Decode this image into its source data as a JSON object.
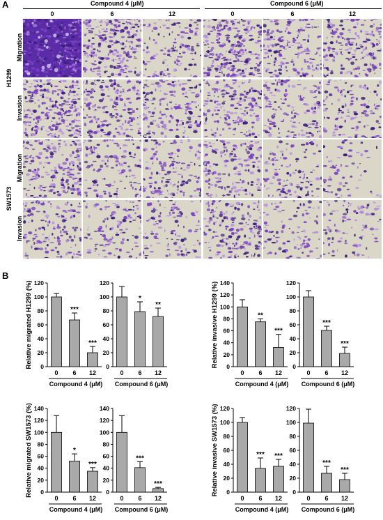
{
  "panels": {
    "a": "A",
    "b": "B"
  },
  "groups": [
    "Compound 4 (μM)",
    "Compound 6 (μM)"
  ],
  "concentrations": [
    "0",
    "6",
    "12"
  ],
  "cell_lines": [
    "H1299",
    "SW1573"
  ],
  "assays": [
    "Migration",
    "Invasion"
  ],
  "stain_colors": {
    "dark": "#3b1f7a",
    "mid": "#7a3fc0",
    "light": "#b58be0",
    "bg_dense": "#5a2ca8",
    "bg_sparse": "#dad6c8"
  },
  "chart_data": [
    {
      "type": "bar",
      "ylabel": "Relative migrated H1299 (%)",
      "xlabel": "Compound 4 (μM)",
      "categories": [
        "0",
        "6",
        "12"
      ],
      "values": [
        100,
        67,
        20
      ],
      "errors": [
        5,
        10,
        9
      ],
      "significance": [
        "",
        "***",
        "***"
      ],
      "ylim": [
        0,
        120
      ],
      "yticks": [
        0,
        20,
        40,
        60,
        80,
        100,
        120
      ],
      "show_ylabel": true
    },
    {
      "type": "bar",
      "ylabel": "",
      "xlabel": "Compound 6 (μM)",
      "categories": [
        "0",
        "6",
        "12"
      ],
      "values": [
        100,
        79,
        72
      ],
      "errors": [
        15,
        14,
        12
      ],
      "significance": [
        "",
        "*",
        "**"
      ],
      "ylim": [
        0,
        120
      ],
      "yticks": [
        0,
        20,
        40,
        60,
        80,
        100,
        120
      ],
      "show_ylabel": false
    },
    {
      "type": "bar",
      "ylabel": "Relative invasive H1299 (%)",
      "xlabel": "Compound 4 (μM)",
      "categories": [
        "0",
        "6",
        "12"
      ],
      "values": [
        100,
        75,
        32
      ],
      "errors": [
        12,
        5,
        22
      ],
      "significance": [
        "",
        "**",
        "***"
      ],
      "ylim": [
        0,
        140
      ],
      "yticks": [
        0,
        20,
        40,
        60,
        80,
        100,
        120,
        140
      ],
      "show_ylabel": true
    },
    {
      "type": "bar",
      "ylabel": "",
      "xlabel": "Compound 6 (μM)",
      "categories": [
        "0",
        "6",
        "12"
      ],
      "values": [
        100,
        52,
        19
      ],
      "errors": [
        9,
        6,
        9
      ],
      "significance": [
        "",
        "***",
        "***"
      ],
      "ylim": [
        0,
        120
      ],
      "yticks": [
        0,
        20,
        40,
        60,
        80,
        100,
        120
      ],
      "show_ylabel": false
    },
    {
      "type": "bar",
      "ylabel": "Relative migrated SW1573 (%)",
      "xlabel": "Compound 4 (μM)",
      "categories": [
        "0",
        "6",
        "12"
      ],
      "values": [
        100,
        52,
        35
      ],
      "errors": [
        28,
        12,
        6
      ],
      "significance": [
        "",
        "*",
        "***"
      ],
      "ylim": [
        0,
        140
      ],
      "yticks": [
        0,
        20,
        40,
        60,
        80,
        100,
        120,
        140
      ],
      "show_ylabel": true
    },
    {
      "type": "bar",
      "ylabel": "",
      "xlabel": "Compound 6 (μM)",
      "categories": [
        "0",
        "6",
        "12"
      ],
      "values": [
        100,
        41,
        6
      ],
      "errors": [
        28,
        10,
        2
      ],
      "significance": [
        "",
        "***",
        "***"
      ],
      "ylim": [
        0,
        140
      ],
      "yticks": [
        0,
        20,
        40,
        60,
        80,
        100,
        120,
        140
      ],
      "show_ylabel": false
    },
    {
      "type": "bar",
      "ylabel": "Relative invasive SW1573 (%)",
      "xlabel": "Compound 4 (μM)",
      "categories": [
        "0",
        "6",
        "12"
      ],
      "values": [
        100,
        34,
        37
      ],
      "errors": [
        7,
        15,
        10
      ],
      "significance": [
        "",
        "***",
        "***"
      ],
      "ylim": [
        0,
        120
      ],
      "yticks": [
        0,
        20,
        40,
        60,
        80,
        100,
        120
      ],
      "show_ylabel": true
    },
    {
      "type": "bar",
      "ylabel": "",
      "xlabel": "Compound 6 (μM)",
      "categories": [
        "0",
        "6",
        "12"
      ],
      "values": [
        99,
        27,
        18
      ],
      "errors": [
        20,
        10,
        9
      ],
      "significance": [
        "",
        "***",
        "***"
      ],
      "ylim": [
        0,
        120
      ],
      "yticks": [
        0,
        20,
        40,
        60,
        80,
        100,
        120
      ],
      "show_ylabel": false
    }
  ]
}
